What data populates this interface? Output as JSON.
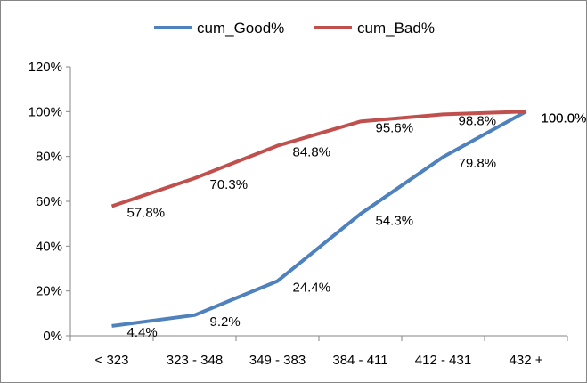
{
  "chart_data": {
    "type": "line",
    "title": "",
    "xlabel": "",
    "ylabel": "",
    "categories": [
      "< 323",
      "323 - 348",
      "349 - 383",
      "384 - 411",
      "412 - 431",
      "432 +"
    ],
    "ylim": [
      0,
      120
    ],
    "y_ticks": [
      0,
      20,
      40,
      60,
      80,
      100,
      120
    ],
    "y_tick_labels": [
      "0%",
      "20%",
      "40%",
      "60%",
      "80%",
      "100%",
      "120%"
    ],
    "grid": false,
    "legend_position": "top",
    "series": [
      {
        "name": "cum_Good%",
        "color": "#4F81BD",
        "values": [
          4.4,
          9.2,
          24.4,
          54.3,
          79.8,
          100.0
        ],
        "labels": [
          "4.4%",
          "9.2%",
          "24.4%",
          "54.3%",
          "79.8%",
          "100.0%"
        ]
      },
      {
        "name": "cum_Bad%",
        "color": "#C0504D",
        "values": [
          57.8,
          70.3,
          84.8,
          95.6,
          98.8,
          100.0
        ],
        "labels": [
          "57.8%",
          "70.3%",
          "84.8%",
          "95.6%",
          "98.8%",
          "100.0%"
        ]
      }
    ]
  }
}
